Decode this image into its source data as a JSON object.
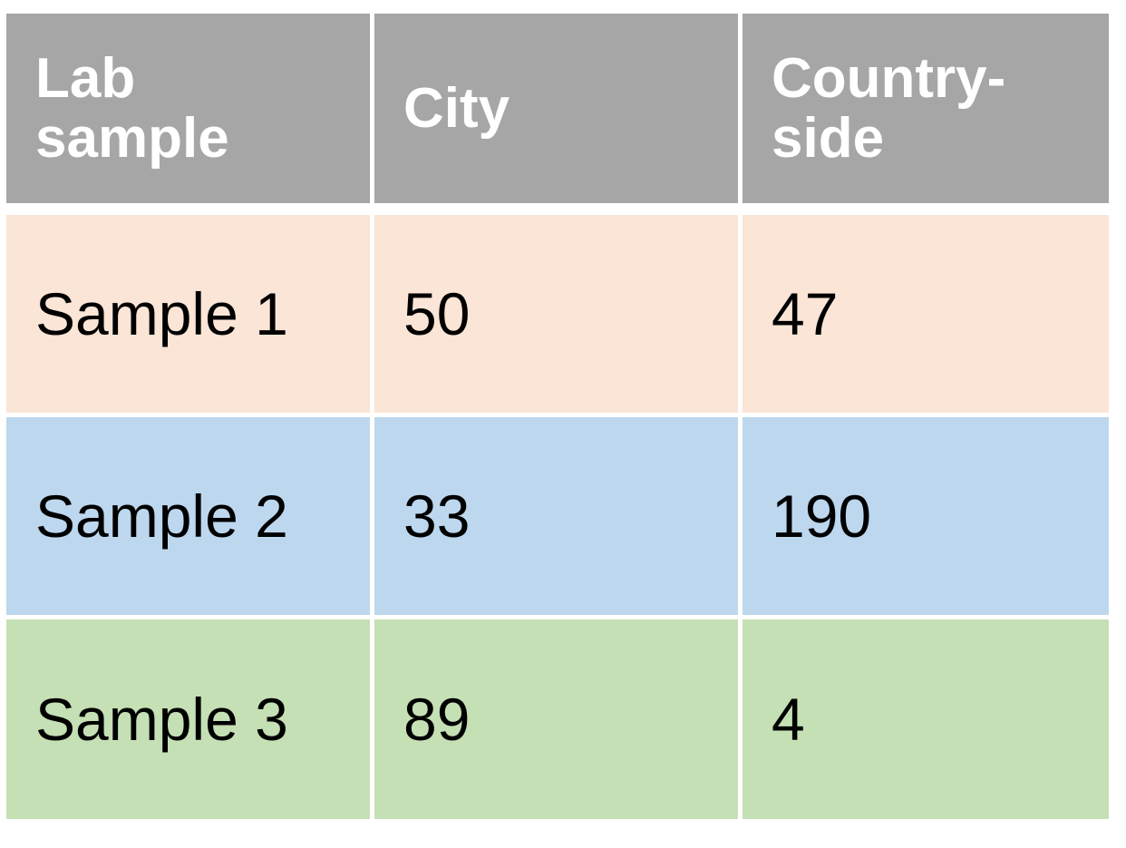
{
  "chart_data": {
    "type": "table",
    "columns": [
      "Lab sample",
      "City",
      "Country-side"
    ],
    "header_lines": [
      [
        "Lab",
        "sample"
      ],
      [
        "City"
      ],
      [
        "Country-",
        "side"
      ]
    ],
    "rows": [
      {
        "label": "Sample 1",
        "values": [
          "50",
          "47"
        ],
        "color": "#fbe5d6"
      },
      {
        "label": "Sample 2",
        "values": [
          "33",
          "190"
        ],
        "color": "#bdd7ee"
      },
      {
        "label": "Sample 3",
        "values": [
          "89",
          "4"
        ],
        "color": "#c5e0b4"
      }
    ],
    "header_color": "#a6a6a6"
  }
}
